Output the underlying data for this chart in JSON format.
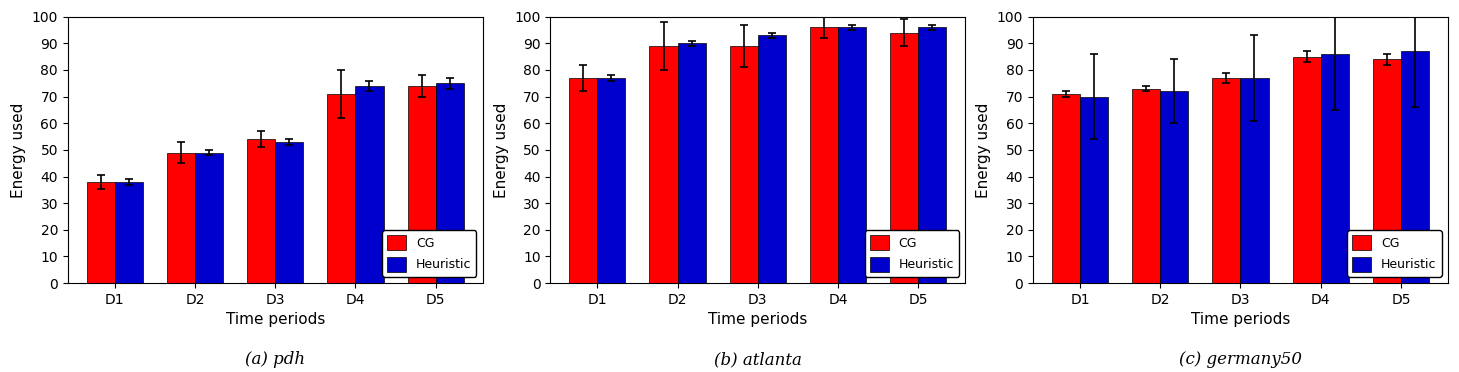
{
  "subplots": [
    {
      "title": "(a) pdh",
      "categories": [
        "D1",
        "D2",
        "D3",
        "D4",
        "D5"
      ],
      "cg_values": [
        38,
        49,
        54,
        71,
        74
      ],
      "heuristic_values": [
        38,
        49,
        53,
        74,
        75
      ],
      "cg_errors": [
        2.5,
        4,
        3,
        9,
        4
      ],
      "heuristic_errors": [
        1,
        1,
        1,
        2,
        2
      ]
    },
    {
      "title": "(b) atlanta",
      "categories": [
        "D1",
        "D2",
        "D3",
        "D4",
        "D5"
      ],
      "cg_values": [
        77,
        89,
        89,
        96,
        94
      ],
      "heuristic_values": [
        77,
        90,
        93,
        96,
        96
      ],
      "cg_errors": [
        5,
        9,
        8,
        4,
        5
      ],
      "heuristic_errors": [
        1,
        1,
        1,
        1,
        1
      ]
    },
    {
      "title": "(c) germany50",
      "categories": [
        "D1",
        "D2",
        "D3",
        "D4",
        "D5"
      ],
      "cg_values": [
        71,
        73,
        77,
        85,
        84
      ],
      "heuristic_values": [
        70,
        72,
        77,
        86,
        87
      ],
      "cg_errors": [
        1,
        1,
        2,
        2,
        2
      ],
      "heuristic_errors": [
        16,
        12,
        16,
        21,
        21
      ]
    }
  ],
  "cg_color": "#ff0000",
  "heuristic_color": "#0000cc",
  "bar_width": 0.35,
  "ylabel": "Energy used",
  "xlabel": "Time periods",
  "ylim": [
    0,
    100
  ],
  "yticks": [
    0,
    10,
    20,
    30,
    40,
    50,
    60,
    70,
    80,
    90,
    100
  ],
  "legend_labels": [
    "CG",
    "Heuristic"
  ],
  "error_capsize": 3,
  "error_color": "black",
  "figure_width": 14.59,
  "figure_height": 3.72,
  "dpi": 100
}
